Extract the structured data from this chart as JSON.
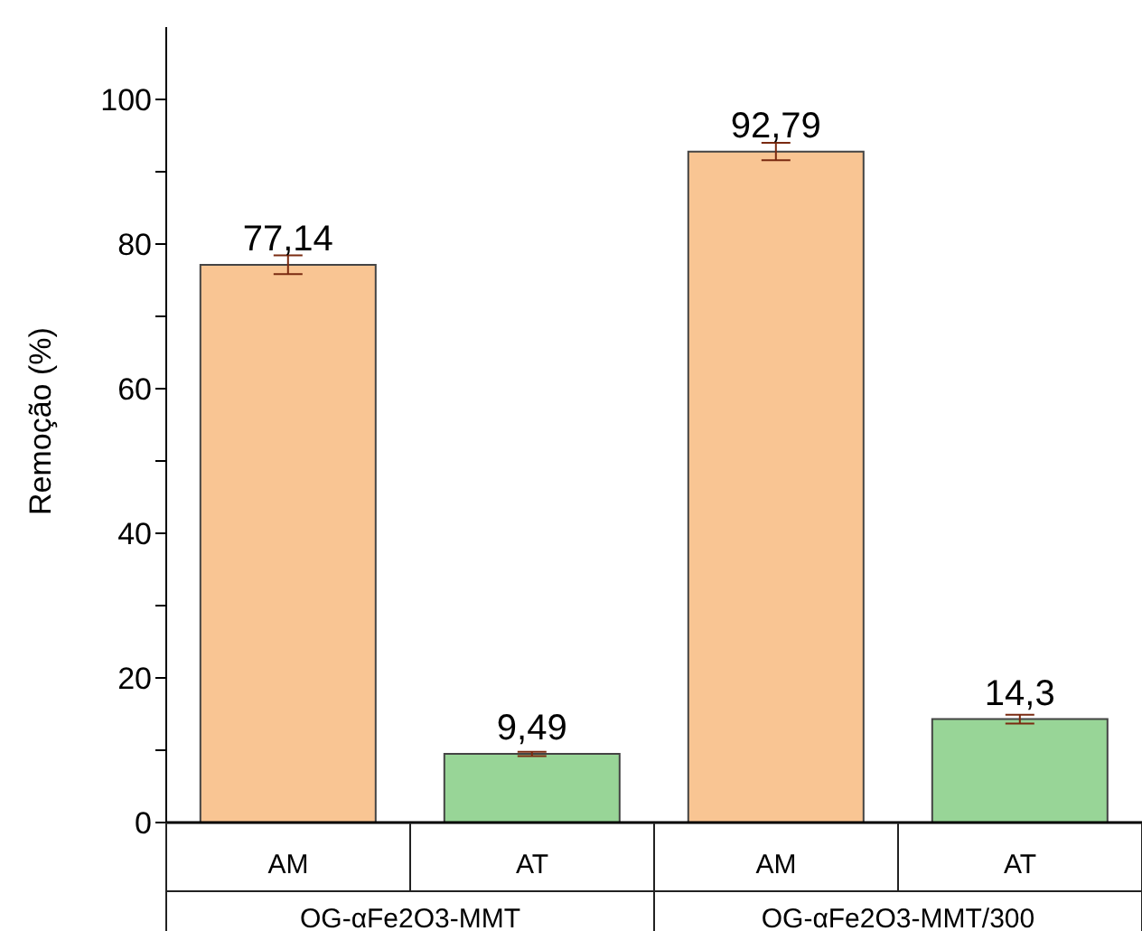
{
  "chart_data": {
    "type": "bar",
    "ylabel": "Remoção (%)",
    "categories": [
      "AM",
      "AT",
      "AM",
      "AT"
    ],
    "values": [
      77.14,
      9.49,
      92.79,
      14.3
    ],
    "colors": [
      "#f9c593",
      "#98d597",
      "#f9c593",
      "#98d597"
    ],
    "errors": [
      1.3,
      0.3,
      1.2,
      0.6
    ],
    "value_labels": [
      "77,14",
      "9,49",
      "92,79",
      "14,3"
    ],
    "annotations": [
      "OG-αFe2O3-MMT",
      "OG-αFe2O3-MMT/300"
    ],
    "ylim": [
      0,
      110
    ],
    "yticks": [
      0,
      {
        "value": 10,
        "label": null
      },
      20,
      {
        "value": 30,
        "label": null
      },
      40,
      {
        "value": 50,
        "label": null
      },
      60,
      {
        "value": 70,
        "label": null
      },
      80,
      {
        "value": 90,
        "label": null
      },
      100
    ],
    "grid": false,
    "legend": false
  }
}
